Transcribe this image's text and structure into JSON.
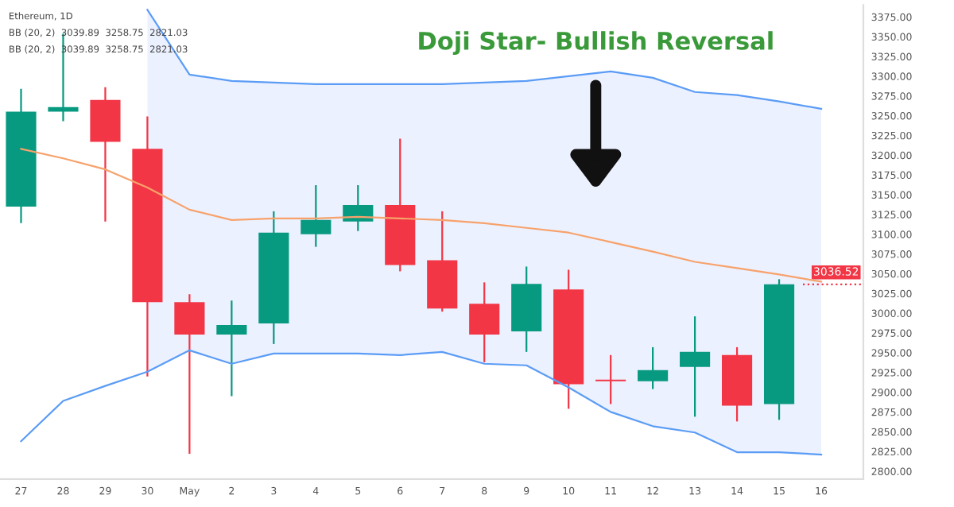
{
  "chart_data": {
    "type": "candlestick",
    "title": "Doji Star- Bullish Reversal",
    "categories": [
      "27",
      "28",
      "29",
      "30",
      "May",
      "2",
      "3",
      "4",
      "5",
      "6",
      "7",
      "8",
      "9",
      "10",
      "11",
      "12",
      "13",
      "14",
      "15",
      "16"
    ],
    "ohlc": [
      [
        3135,
        3284,
        3114,
        3255
      ],
      [
        3255,
        3354,
        3243,
        3261
      ],
      [
        3270,
        3286,
        3116,
        3217
      ],
      [
        3208,
        3249,
        2920,
        3014
      ],
      [
        3014,
        3024,
        2822,
        2973
      ],
      [
        2973,
        3016,
        2895,
        2985
      ],
      [
        2987,
        3129,
        2961,
        3102
      ],
      [
        3100,
        3162,
        3084,
        3118
      ],
      [
        3116,
        3162,
        3104,
        3137
      ],
      [
        3137,
        3221,
        3053,
        3061
      ],
      [
        3067,
        3129,
        3002,
        3006
      ],
      [
        3012,
        3039,
        2938,
        2973
      ],
      [
        2977,
        3059,
        2951,
        3037
      ],
      [
        3030,
        3055,
        2879,
        2910
      ],
      [
        2916,
        2947,
        2885,
        2914
      ],
      [
        2914,
        2957,
        2904,
        2928
      ],
      [
        2932,
        2996,
        2869,
        2951
      ],
      [
        2947,
        2957,
        2863,
        2883
      ],
      [
        2885,
        3043,
        2865,
        3036.52
      ],
      null
    ],
    "colors": [
      "#089981",
      "#089981",
      "#f23645",
      "#f23645",
      "#f23645",
      "#089981",
      "#089981",
      "#089981",
      "#089981",
      "#f23645",
      "#f23645",
      "#f23645",
      "#089981",
      "#f23645",
      "#f23645",
      "#089981",
      "#089981",
      "#f23645",
      "#089981",
      null
    ],
    "series": [
      {
        "type": "line",
        "color": "#f7a26b",
        "values": [
          3208,
          3196,
          3182,
          3159,
          3131,
          3118,
          3120,
          3120,
          3122,
          3120,
          3118,
          3114,
          3108,
          3102,
          3090,
          3078,
          3065,
          3057,
          3049,
          3039.89
        ],
        "upper": [
          null,
          null,
          null,
          3384,
          3302,
          3294,
          3292,
          3290,
          3290,
          3290,
          3290,
          3292,
          3294,
          3300,
          3306,
          3298,
          3280,
          3276,
          3268,
          3258.75
        ],
        "lower": [
          null,
          null,
          null,
          2926,
          2953,
          2936,
          2949,
          2949,
          2949,
          2947,
          2951,
          2936,
          2934,
          2906,
          2875,
          2857,
          2849,
          2824,
          2824,
          2821.03
        ]
      },
      {
        "type": "line",
        "color": "#5b9cf6",
        "values": [
          null,
          null,
          null,
          3384,
          3302,
          3294,
          3292,
          3290,
          3290,
          3290,
          3290,
          3292,
          3294,
          3300,
          3306,
          3298,
          3280,
          3276,
          3268,
          3258.75
        ]
      },
      {
        "type": "line",
        "color": "#5b9cf6",
        "values": [
          2838,
          2889,
          2908,
          2926,
          2953,
          2936,
          2949,
          2949,
          2949,
          2947,
          2951,
          2936,
          2934,
          2906,
          2875,
          2857,
          2849,
          2824,
          2824,
          2821.03
        ]
      }
    ],
    "ylim": [
      2790,
      3390
    ],
    "yticks": [
      {
        "value": 2800,
        "label": "2800.00"
      },
      {
        "value": 2825,
        "label": "2825.00"
      },
      {
        "value": 2850,
        "label": "2850.00"
      },
      {
        "value": 2875,
        "label": "2875.00"
      },
      {
        "value": 2900,
        "label": "2900.00"
      },
      {
        "value": 2925,
        "label": "2925.00"
      },
      {
        "value": 2950,
        "label": "2950.00"
      },
      {
        "value": 2975,
        "label": "2975.00"
      },
      {
        "value": 3000,
        "label": "3000.00"
      },
      {
        "value": 3025,
        "label": "3025.00"
      },
      {
        "value": 3050,
        "label": "3050.00"
      },
      {
        "value": 3075,
        "label": "3075.00"
      },
      {
        "value": 3100,
        "label": "3100.00"
      },
      {
        "value": 3125,
        "label": "3125.00"
      },
      {
        "value": 3150,
        "label": "3150.00"
      },
      {
        "value": 3175,
        "label": "3175.00"
      },
      {
        "value": 3200,
        "label": "3200.00"
      },
      {
        "value": 3225,
        "label": "3225.00"
      },
      {
        "value": 3250,
        "label": "3250.00"
      },
      {
        "value": 3275,
        "label": "3275.00"
      },
      {
        "value": 3300,
        "label": "3300.00"
      },
      {
        "value": 3325,
        "label": "3325.00"
      },
      {
        "value": 3350,
        "label": "3350.00"
      },
      {
        "value": 3375,
        "label": "3375.00"
      }
    ],
    "ref_lines": [
      {
        "axis": "y",
        "value": 3036.52,
        "label": "3036.52",
        "color": "#f23645",
        "line_style": "dotted"
      }
    ],
    "annotations": [
      "Ethereum, 1D",
      "BB (20, 2)  3039.89  3258.75  2821.03",
      "BB (20, 2)  3039.89  3258.75  2821.03"
    ]
  }
}
